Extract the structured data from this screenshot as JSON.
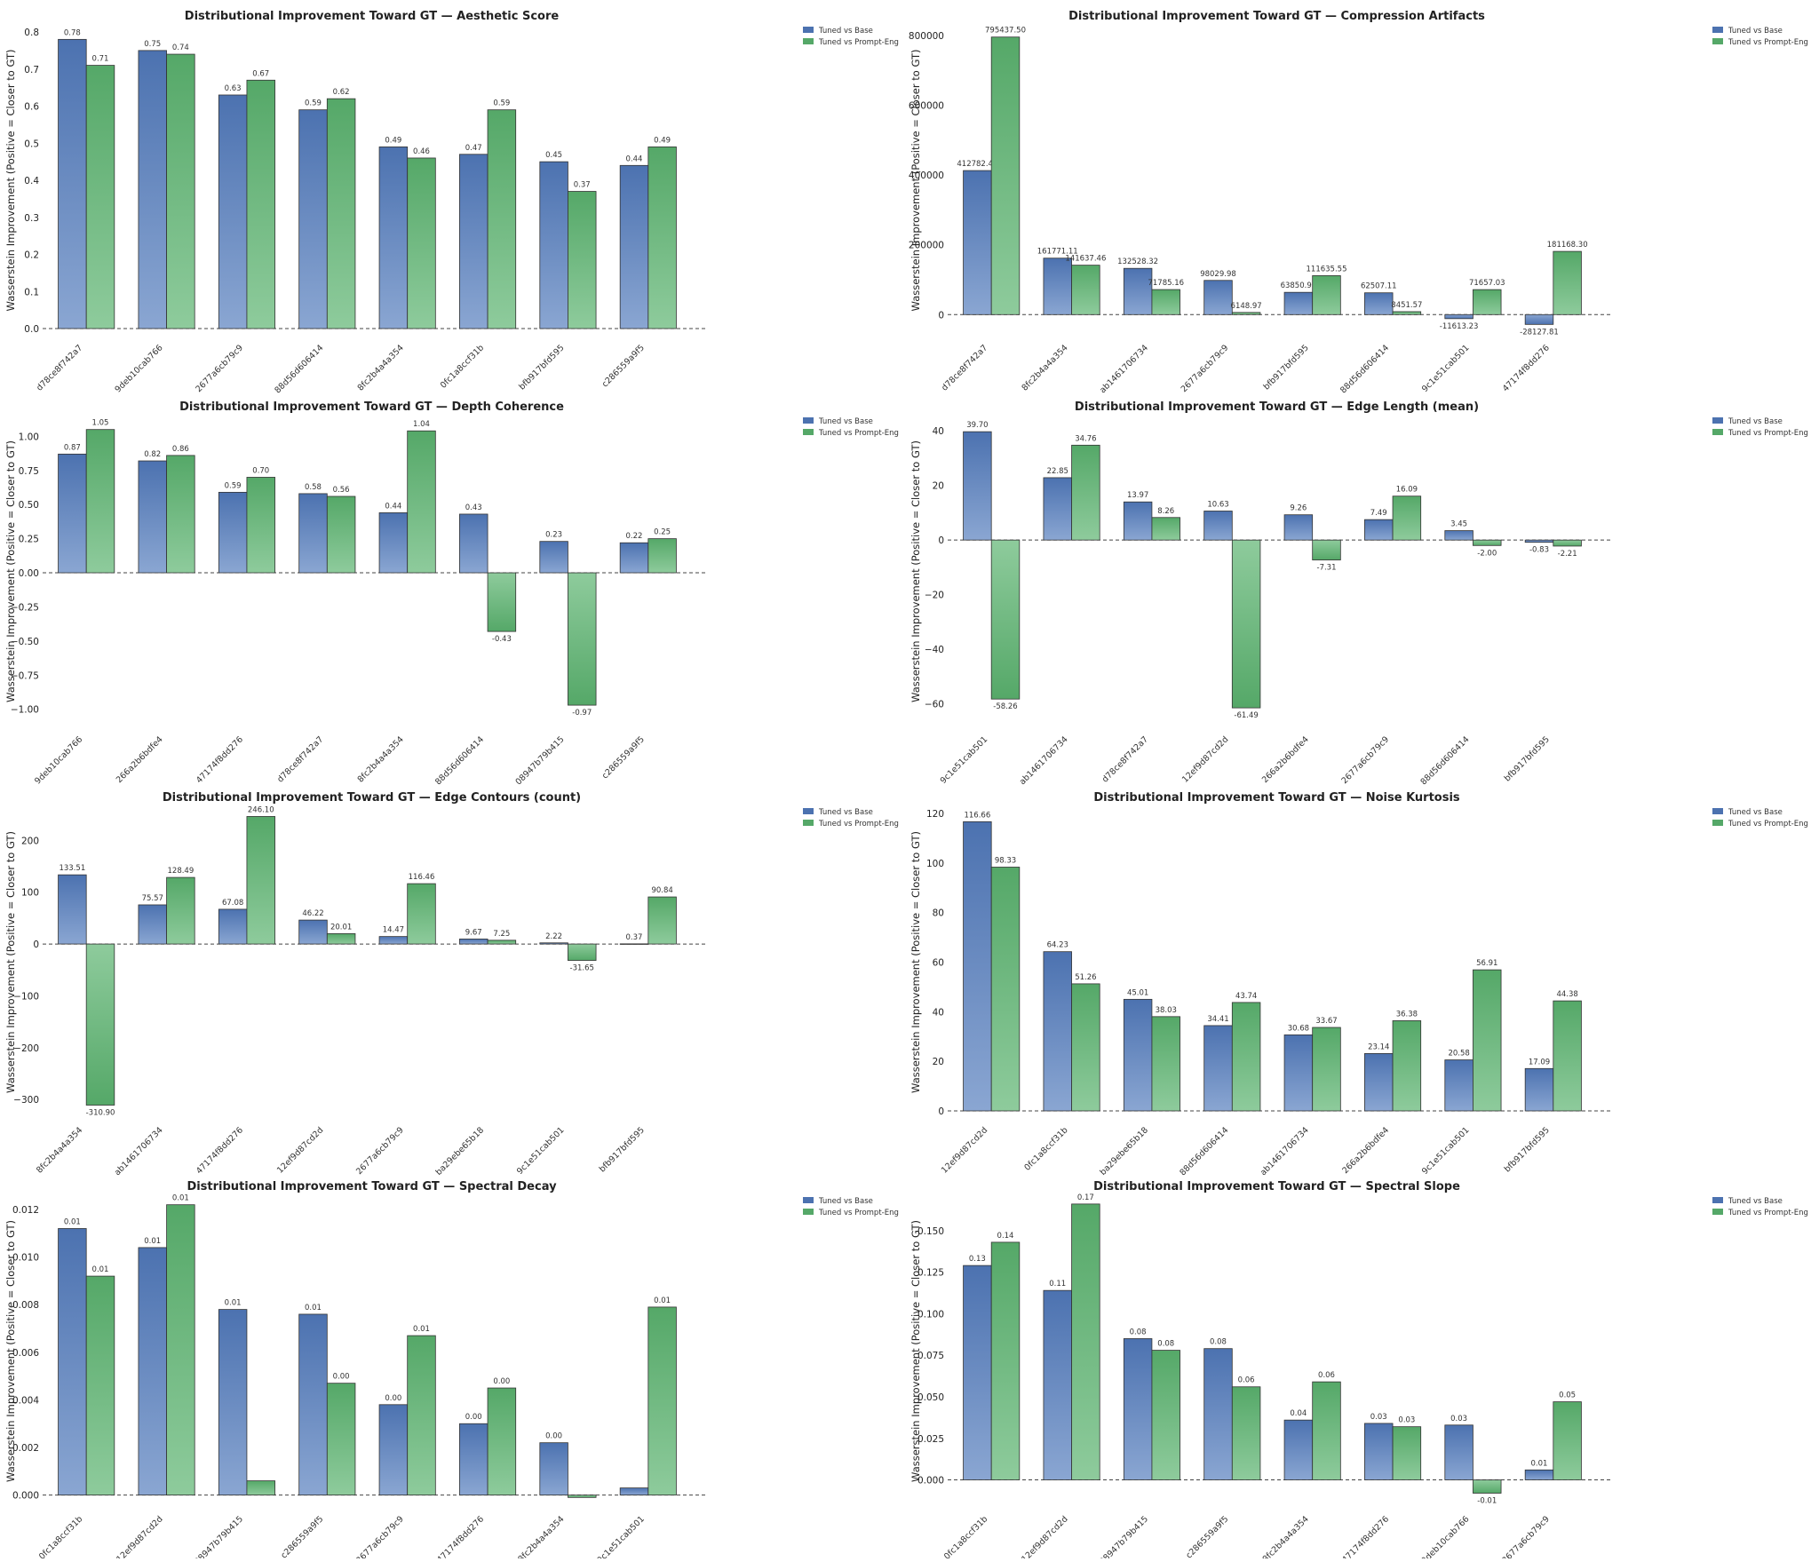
{
  "legend": {
    "base_label": "Tuned vs Base",
    "prompt_label": "Tuned vs Prompt-Eng"
  },
  "colors": {
    "base": "#4c72b0",
    "base_light": "#8aa6d2",
    "prompt": "#55a868",
    "prompt_light": "#8ecb9c",
    "edge": "#333333"
  },
  "chart_data": [
    {
      "type": "bar",
      "title": "Distributional Improvement Toward GT — Aesthetic Score",
      "ylabel": "Wasserstein Improvement (Positive = Closer to GT)",
      "categories": [
        "d78ce8f742a7",
        "9deb10cab766",
        "2677a6cb79c9",
        "88d56d606414",
        "8fc2b4a4a354",
        "0fc1a8ccf31b",
        "bfb917bfd595",
        "c286559a9f5"
      ],
      "series": [
        {
          "name": "Tuned vs Base",
          "values": [
            0.78,
            0.75,
            0.63,
            0.59,
            0.49,
            0.47,
            0.45,
            0.44
          ]
        },
        {
          "name": "Tuned vs Prompt-Eng",
          "values": [
            0.71,
            0.74,
            0.67,
            0.62,
            0.46,
            0.59,
            0.37,
            0.49
          ]
        }
      ],
      "value_labels": {
        "base": [
          "0.78",
          "0.75",
          "0.63",
          "0.59",
          "0.49",
          "0.47",
          "0.45",
          "0.44"
        ],
        "prompt": [
          "0.71",
          "0.74",
          "0.67",
          "0.62",
          "0.46",
          "0.59",
          "0.37",
          "0.49"
        ]
      },
      "ylim": [
        0,
        0.8
      ],
      "yticks": [
        0.0,
        0.1,
        0.2,
        0.3,
        0.4,
        0.5,
        0.6,
        0.7,
        0.8
      ],
      "ytick_labels": [
        "0.0",
        "0.1",
        "0.2",
        "0.3",
        "0.4",
        "0.5",
        "0.6",
        "0.7",
        "0.8"
      ],
      "legend_position": "top-right"
    },
    {
      "type": "bar",
      "title": "Distributional Improvement Toward GT — Compression Artifacts",
      "ylabel": "Wasserstein Improvement (Positive = Closer to GT)",
      "categories": [
        "d78ce8f742a7",
        "8fc2b4a4a354",
        "ab1461706734",
        "2677a6cb79c9",
        "bfb917bfd595",
        "88d56d606414",
        "9c1e51cab501",
        "47174f8dd276"
      ],
      "series": [
        {
          "name": "Tuned vs Base",
          "values": [
            412782.45,
            161771.11,
            132528.32,
            98029.98,
            63850.91,
            62507.11,
            -11613.23,
            -28127.81
          ]
        },
        {
          "name": "Tuned vs Prompt-Eng",
          "values": [
            795437.5,
            141637.46,
            71785.16,
            6148.97,
            111635.55,
            8451.57,
            71657.03,
            181168.3
          ]
        }
      ],
      "value_labels": {
        "base": [
          "412782.45",
          "161771.11",
          "132528.32",
          "98029.98",
          "63850.91",
          "62507.11",
          "-11613.23",
          "-28127.81"
        ],
        "prompt": [
          "795437.50",
          "141637.46",
          "71785.16",
          "6148.97",
          "111635.55",
          "8451.57",
          "71657.03",
          "181168.30"
        ]
      },
      "ylim": [
        -40000,
        810000
      ],
      "yticks": [
        0,
        200000,
        400000,
        600000,
        800000
      ],
      "ytick_labels": [
        "0",
        "200000",
        "400000",
        "600000",
        "800000"
      ],
      "legend_position": "top-right"
    },
    {
      "type": "bar",
      "title": "Distributional Improvement Toward GT — Depth Coherence",
      "ylabel": "Wasserstein Improvement (Positive = Closer to GT)",
      "categories": [
        "9deb10cab766",
        "266a2b6bdfe4",
        "47174f8dd276",
        "d78ce8f742a7",
        "8fc2b4a4a354",
        "88d56d606414",
        "08947b79b415",
        "c286559a9f5"
      ],
      "series": [
        {
          "name": "Tuned vs Base",
          "values": [
            0.87,
            0.82,
            0.59,
            0.58,
            0.44,
            0.43,
            0.23,
            0.22
          ]
        },
        {
          "name": "Tuned vs Prompt-Eng",
          "values": [
            1.05,
            0.86,
            0.7,
            0.56,
            1.04,
            -0.43,
            -0.97,
            0.25
          ]
        }
      ],
      "value_labels": {
        "base": [
          "0.87",
          "0.82",
          "0.59",
          "0.58",
          "0.44",
          "0.43",
          "0.23",
          "0.22"
        ],
        "prompt": [
          "1.05",
          "0.86",
          "0.70",
          "0.56",
          "1.04",
          "-0.43",
          "-0.97",
          "0.25"
        ]
      },
      "ylim": [
        -1.08,
        1.1
      ],
      "yticks": [
        -1.0,
        -0.75,
        -0.5,
        -0.25,
        0.0,
        0.25,
        0.5,
        0.75,
        1.0
      ],
      "ytick_labels": [
        "−1.00",
        "−0.75",
        "−0.50",
        "−0.25",
        "0.00",
        "0.25",
        "0.50",
        "0.75",
        "1.00"
      ],
      "legend_position": "top-right"
    },
    {
      "type": "bar",
      "title": "Distributional Improvement Toward GT — Edge Length (mean)",
      "ylabel": "Wasserstein Improvement (Positive = Closer to GT)",
      "categories": [
        "9c1e51cab501",
        "ab1461706734",
        "d78ce8f742a7",
        "12ef9d87cd2d",
        "266a2b6bdfe4",
        "2677a6cb79c9",
        "88d56d606414",
        "bfb917bfd595"
      ],
      "series": [
        {
          "name": "Tuned vs Base",
          "values": [
            39.7,
            22.85,
            13.97,
            10.63,
            9.26,
            7.49,
            3.45,
            -0.83
          ]
        },
        {
          "name": "Tuned vs Prompt-Eng",
          "values": [
            -58.26,
            34.76,
            8.26,
            -61.49,
            -7.31,
            16.09,
            -2.0,
            -2.21
          ]
        }
      ],
      "value_labels": {
        "base": [
          "39.70",
          "22.85",
          "13.97",
          "10.63",
          "9.26",
          "7.49",
          "3.45",
          "-0.83"
        ],
        "prompt": [
          "-58.26",
          "34.76",
          "8.26",
          "-61.49",
          "-7.31",
          "16.09",
          "-2.00",
          "-2.21"
        ]
      },
      "ylim": [
        -66,
        43
      ],
      "yticks": [
        -60,
        -40,
        -20,
        0,
        20,
        40
      ],
      "ytick_labels": [
        "−60",
        "−40",
        "−20",
        "0",
        "20",
        "40"
      ],
      "legend_position": "top-right"
    },
    {
      "type": "bar",
      "title": "Distributional Improvement Toward GT — Edge Contours (count)",
      "ylabel": "Wasserstein Improvement (Positive = Closer to GT)",
      "categories": [
        "8fc2b4a4a354",
        "ab1461706734",
        "47174f8dd276",
        "12ef9d87cd2d",
        "2677a6cb79c9",
        "ba29ebe65b18",
        "9c1e51cab501",
        "bfb917bfd595"
      ],
      "series": [
        {
          "name": "Tuned vs Base",
          "values": [
            133.51,
            75.57,
            67.08,
            46.22,
            14.47,
            9.67,
            2.22,
            0.37
          ]
        },
        {
          "name": "Tuned vs Prompt-Eng",
          "values": [
            -310.9,
            128.49,
            246.1,
            20.01,
            116.46,
            7.25,
            -31.65,
            90.84
          ]
        }
      ],
      "value_labels": {
        "base": [
          "133.51",
          "75.57",
          "67.08",
          "46.22",
          "14.47",
          "9.67",
          "2.22",
          "0.37"
        ],
        "prompt": [
          "-310.90",
          "128.49",
          "246.10",
          "20.01",
          "116.46",
          "7.25",
          "-31.65",
          "90.84"
        ]
      },
      "ylim": [
        -322,
        252
      ],
      "yticks": [
        -300,
        -200,
        -100,
        0,
        100,
        200
      ],
      "ytick_labels": [
        "−300",
        "−200",
        "−100",
        "0",
        "100",
        "200"
      ],
      "legend_position": "top-right"
    },
    {
      "type": "bar",
      "title": "Distributional Improvement Toward GT — Noise Kurtosis",
      "ylabel": "Wasserstein Improvement (Positive = Closer to GT)",
      "categories": [
        "12ef9d87cd2d",
        "0fc1a8ccf31b",
        "ba29ebe65b18",
        "88d56d606414",
        "ab1461706734",
        "266a2b6bdfe4",
        "9c1e51cab501",
        "bfb917bfd595"
      ],
      "series": [
        {
          "name": "Tuned vs Base",
          "values": [
            116.66,
            64.23,
            45.01,
            34.41,
            30.68,
            23.14,
            20.58,
            17.09
          ]
        },
        {
          "name": "Tuned vs Prompt-Eng",
          "values": [
            98.33,
            51.26,
            38.03,
            43.74,
            33.67,
            36.38,
            56.91,
            44.38
          ]
        }
      ],
      "value_labels": {
        "base": [
          "116.66",
          "64.23",
          "45.01",
          "34.41",
          "30.68",
          "23.14",
          "20.58",
          "17.09"
        ],
        "prompt": [
          "98.33",
          "51.26",
          "38.03",
          "43.74",
          "33.67",
          "36.38",
          "56.91",
          "44.38"
        ]
      },
      "ylim": [
        0,
        120
      ],
      "yticks": [
        0,
        20,
        40,
        60,
        80,
        100,
        120
      ],
      "ytick_labels": [
        "0",
        "20",
        "40",
        "60",
        "80",
        "100",
        "120"
      ],
      "legend_position": "top-right"
    },
    {
      "type": "bar",
      "title": "Distributional Improvement Toward GT — Spectral Decay",
      "ylabel": "Wasserstein Improvement (Positive = Closer to GT)",
      "categories": [
        "0fc1a8ccf31b",
        "12ef9d87cd2d",
        "08947b79b415",
        "c286559a9f5",
        "2677a6cb79c9",
        "47174f8dd276",
        "8fc2b4a4a354",
        "9c1e51cab501"
      ],
      "series": [
        {
          "name": "Tuned vs Base",
          "values": [
            0.0112,
            0.0104,
            0.0078,
            0.0076,
            0.0038,
            0.003,
            0.0022,
            0.0003
          ]
        },
        {
          "name": "Tuned vs Prompt-Eng",
          "values": [
            0.0092,
            0.0122,
            0.0006,
            0.0047,
            0.0067,
            0.0045,
            -0.0001,
            0.0079
          ]
        }
      ],
      "value_labels": {
        "base": [
          "0.01",
          "0.01",
          "0.01",
          "0.01",
          "0.00",
          "0.00",
          "0.00",
          ""
        ],
        "prompt": [
          "0.01",
          "0.01",
          "",
          "0.00",
          "0.01",
          "0.00",
          "",
          "0.01"
        ]
      },
      "ylim": [
        -0.0002,
        0.0123
      ],
      "yticks": [
        0,
        0.002,
        0.004,
        0.006,
        0.008,
        0.01,
        0.012
      ],
      "ytick_labels": [
        "0.000",
        "0.002",
        "0.004",
        "0.006",
        "0.008",
        "0.010",
        "0.012"
      ],
      "legend_position": "top-right"
    },
    {
      "type": "bar",
      "title": "Distributional Improvement Toward GT — Spectral Slope",
      "ylabel": "Wasserstein Improvement (Positive = Closer to GT)",
      "categories": [
        "0fc1a8ccf31b",
        "12ef9d87cd2d",
        "08947b79b415",
        "c286559a9f5",
        "8fc2b4a4a354",
        "47174f8dd276",
        "9deb10cab766",
        "2677a6cb79c9"
      ],
      "series": [
        {
          "name": "Tuned vs Base",
          "values": [
            0.129,
            0.114,
            0.085,
            0.079,
            0.036,
            0.034,
            0.033,
            0.006
          ]
        },
        {
          "name": "Tuned vs Prompt-Eng",
          "values": [
            0.143,
            0.166,
            0.078,
            0.056,
            0.059,
            0.032,
            -0.008,
            0.047
          ]
        }
      ],
      "value_labels": {
        "base": [
          "0.13",
          "0.11",
          "0.08",
          "0.08",
          "0.04",
          "0.03",
          "0.03",
          "0.01"
        ],
        "prompt": [
          "0.14",
          "0.17",
          "0.08",
          "0.06",
          "0.06",
          "0.03",
          "-0.01",
          "0.05"
        ]
      },
      "ylim": [
        -0.012,
        0.167
      ],
      "yticks": [
        0,
        0.025,
        0.05,
        0.075,
        0.1,
        0.125,
        0.15
      ],
      "ytick_labels": [
        "0.000",
        "0.025",
        "0.050",
        "0.075",
        "0.100",
        "0.125",
        "0.150"
      ],
      "legend_position": "top-right"
    }
  ]
}
